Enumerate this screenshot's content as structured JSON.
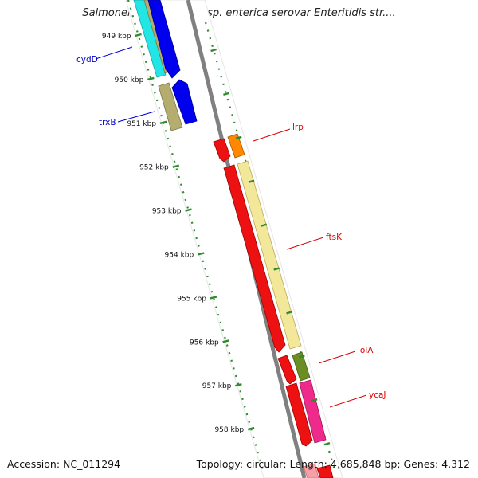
{
  "title": "Salmonella enterica subsp. enterica serovar Enteritidis str....",
  "footer": {
    "accession": "Accession: NC_011294",
    "summary": "Topology: circular; Length: 4,685,848 bp; Genes: 4,312"
  },
  "ticks": [
    "949 kbp",
    "950 kbp",
    "951 kbp",
    "952 kbp",
    "953 kbp",
    "954 kbp",
    "955 kbp",
    "956 kbp",
    "957 kbp",
    "958 kbp"
  ],
  "genes_left": [
    {
      "name": "cydD",
      "color": "#0000cc"
    },
    {
      "name": "trxB",
      "color": "#0000cc"
    }
  ],
  "genes_right": [
    {
      "name": "lrp",
      "color": "#dd0000"
    },
    {
      "name": "ftsK",
      "color": "#dd0000"
    },
    {
      "name": "lolA",
      "color": "#dd0000"
    },
    {
      "name": "ycaJ",
      "color": "#dd0000"
    }
  ],
  "colors": {
    "backbone": "#8a8a8a",
    "tick_green": "#2e8b2e",
    "cyan": "#22e6e6",
    "khaki": "#b5ad70",
    "blue": "#0000ee",
    "red": "#ee1111",
    "orange": "#ff8800",
    "pale_yellow": "#f3e79a",
    "olive": "#6b8e23",
    "magenta": "#ee2a8a"
  }
}
